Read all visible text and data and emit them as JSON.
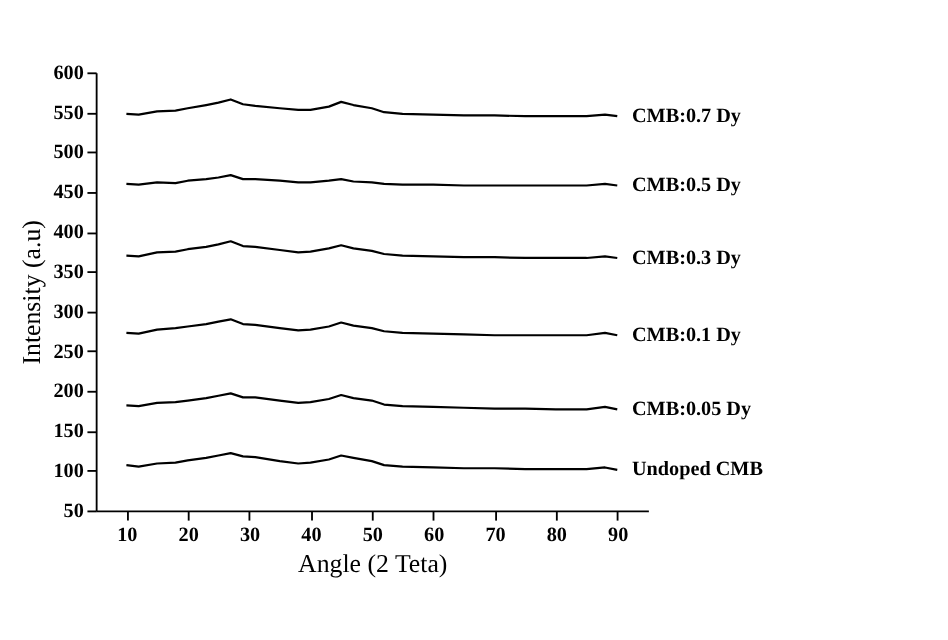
{
  "chart_data": {
    "type": "line",
    "xlabel": "Angle (2 Teta)",
    "ylabel": "Intensity (a.u)",
    "x": [
      10,
      12,
      15,
      18,
      20,
      23,
      25,
      27,
      29,
      31,
      35,
      38,
      40,
      43,
      45,
      47,
      50,
      52,
      55,
      60,
      65,
      70,
      75,
      80,
      85,
      88,
      90
    ],
    "series": [
      {
        "name": "Undoped CMB",
        "color": "#000000",
        "values": [
          107,
          105,
          109,
          110,
          113,
          116,
          119,
          122,
          118,
          117,
          112,
          109,
          110,
          114,
          119,
          116,
          112,
          107,
          105,
          104,
          103,
          103,
          102,
          102,
          102,
          104,
          101
        ]
      },
      {
        "name": "CMB:0.05 Dy",
        "color": "#000000",
        "values": [
          182,
          181,
          185,
          186,
          188,
          191,
          194,
          197,
          192,
          192,
          188,
          185,
          186,
          190,
          195,
          191,
          188,
          183,
          181,
          180,
          179,
          178,
          178,
          177,
          177,
          180,
          177
        ]
      },
      {
        "name": "CMB:0.1 Dy",
        "color": "#000000",
        "values": [
          273,
          272,
          277,
          279,
          281,
          284,
          287,
          290,
          284,
          283,
          279,
          276,
          277,
          281,
          286,
          282,
          279,
          275,
          273,
          272,
          271,
          270,
          270,
          270,
          270,
          273,
          270
        ]
      },
      {
        "name": "CMB:0.3 Dy",
        "color": "#000000",
        "values": [
          370,
          369,
          374,
          375,
          378,
          381,
          384,
          388,
          382,
          381,
          377,
          374,
          375,
          379,
          383,
          379,
          376,
          372,
          370,
          369,
          368,
          368,
          367,
          367,
          367,
          369,
          367
        ]
      },
      {
        "name": "CMB:0.5 Dy",
        "color": "#000000",
        "values": [
          460,
          459,
          462,
          461,
          464,
          466,
          468,
          471,
          466,
          466,
          464,
          462,
          462,
          464,
          466,
          463,
          462,
          460,
          459,
          459,
          458,
          458,
          458,
          458,
          458,
          460,
          458
        ]
      },
      {
        "name": "CMB:0.7 Dy",
        "color": "#000000",
        "values": [
          548,
          547,
          551,
          552,
          555,
          559,
          562,
          566,
          560,
          558,
          555,
          553,
          553,
          557,
          563,
          559,
          555,
          550,
          548,
          547,
          546,
          546,
          545,
          545,
          545,
          547,
          545
        ]
      }
    ],
    "xlim": [
      5,
      95
    ],
    "xticks": [
      10,
      20,
      30,
      40,
      50,
      60,
      70,
      80,
      90
    ],
    "ylim": [
      50,
      600
    ],
    "yticks": [
      50,
      100,
      150,
      200,
      250,
      300,
      350,
      400,
      450,
      500,
      550,
      600
    ],
    "grid": false,
    "legend": false,
    "marker": "none",
    "line_style": "solid"
  }
}
